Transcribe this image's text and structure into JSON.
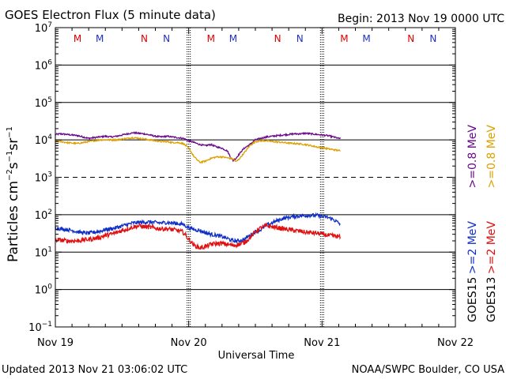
{
  "header": {
    "title": "GOES Electron Flux (5 minute data)",
    "begin": "Begin: 2013 Nov 19 0000 UTC"
  },
  "footer": {
    "updated": "Updated 2013 Nov 21 03:06:02 UTC",
    "source": "NOAA/SWPC Boulder, CO USA"
  },
  "chart_data": {
    "type": "line",
    "title": "GOES Electron Flux (5 minute data)",
    "xlabel": "Universal Time",
    "ylabel": "Particles cm-2 s-1 sr-1",
    "yscale": "log",
    "ylim": [
      0.1,
      10000000
    ],
    "xlim": [
      0,
      72
    ],
    "x_unit": "hours since 2013 Nov 19 0000 UTC",
    "x_ticks": [
      {
        "x": 0,
        "label": "Nov 19"
      },
      {
        "x": 24,
        "label": "Nov 20"
      },
      {
        "x": 48,
        "label": "Nov 21"
      },
      {
        "x": 72,
        "label": "Nov 22"
      }
    ],
    "y_ticks": [
      {
        "exp": -1,
        "base": "10",
        "sup": "−1"
      },
      {
        "exp": 0,
        "base": "10",
        "sup": "0"
      },
      {
        "exp": 1,
        "base": "10",
        "sup": "1"
      },
      {
        "exp": 2,
        "base": "10",
        "sup": "2"
      },
      {
        "exp": 3,
        "base": "10",
        "sup": "3"
      },
      {
        "exp": 4,
        "base": "10",
        "sup": "4"
      },
      {
        "exp": 5,
        "base": "10",
        "sup": "5"
      },
      {
        "exp": 6,
        "base": "10",
        "sup": "6"
      },
      {
        "exp": 7,
        "base": "10",
        "sup": "7"
      }
    ],
    "gridlines_solid": [
      0,
      1,
      2,
      4,
      5,
      6
    ],
    "gridlines_dashed": [
      3
    ],
    "midnight_markers": [
      {
        "x": 24,
        "label": "Nov 20"
      },
      {
        "x": 48,
        "label": "Nov 21"
      }
    ],
    "mn_markers": [
      {
        "x": 4.0,
        "label": "M",
        "color": "#e00000"
      },
      {
        "x": 8.0,
        "label": "M",
        "color": "#2030c0"
      },
      {
        "x": 16.0,
        "label": "N",
        "color": "#e00000"
      },
      {
        "x": 20.0,
        "label": "N",
        "color": "#2030c0"
      },
      {
        "x": 28.0,
        "label": "M",
        "color": "#e00000"
      },
      {
        "x": 32.0,
        "label": "M",
        "color": "#2030c0"
      },
      {
        "x": 40.0,
        "label": "N",
        "color": "#e00000"
      },
      {
        "x": 44.0,
        "label": "N",
        "color": "#2030c0"
      },
      {
        "x": 52.0,
        "label": "M",
        "color": "#e00000"
      },
      {
        "x": 56.0,
        "label": "M",
        "color": "#2030c0"
      },
      {
        "x": 64.0,
        "label": "N",
        "color": "#e00000"
      },
      {
        "x": 68.0,
        "label": "N",
        "color": "#2030c0"
      }
    ],
    "legend": [
      {
        "sat": "GOES15",
        "label": ">=0.8 MeV",
        "color": "#6a0a8c"
      },
      {
        "sat": "GOES13",
        "label": ">=0.8 MeV",
        "color": "#dca000"
      },
      {
        "sat": "GOES15",
        "label": ">=2 MeV",
        "color": "#1030c8"
      },
      {
        "sat": "GOES13",
        "label": ">=2 MeV",
        "color": "#e01010"
      }
    ],
    "legend_sat_labels": [
      "GOES15",
      "GOES13"
    ],
    "series": [
      {
        "name": "GOES15 >=0.8 MeV",
        "color": "#6a0a8c",
        "noise": 0.02,
        "x": [
          0,
          1,
          2,
          3,
          4,
          5,
          6,
          7,
          8,
          9,
          10,
          11,
          12,
          13,
          14,
          15,
          16,
          17,
          18,
          19,
          20,
          21,
          22,
          23,
          24,
          25,
          26,
          27,
          28,
          29,
          30,
          31,
          31.5,
          32,
          32.5,
          33,
          33.5,
          34,
          35,
          36,
          37,
          38,
          39,
          40,
          41,
          42,
          43,
          44,
          45,
          46,
          47,
          48,
          49,
          50,
          51,
          51.3
        ],
        "values": [
          14000,
          14500,
          14000,
          13500,
          13000,
          12000,
          11000,
          11500,
          12000,
          12500,
          12000,
          12500,
          13500,
          14500,
          15500,
          15000,
          14500,
          13500,
          12500,
          12000,
          12500,
          12000,
          11500,
          11000,
          9500,
          8500,
          7500,
          7000,
          7500,
          6500,
          6000,
          5000,
          3500,
          2800,
          3200,
          4000,
          5000,
          6000,
          7500,
          10000,
          11000,
          12000,
          12500,
          13000,
          13500,
          14000,
          14500,
          14500,
          15000,
          14500,
          14000,
          13500,
          13000,
          12000,
          11000,
          10800
        ]
      },
      {
        "name": "GOES13 >=0.8 MeV",
        "color": "#dca000",
        "noise": 0.02,
        "x": [
          0,
          1,
          2,
          3,
          4,
          5,
          6,
          7,
          8,
          9,
          10,
          11,
          12,
          13,
          14,
          15,
          16,
          17,
          18,
          19,
          20,
          21,
          22,
          23,
          24,
          25,
          26,
          27,
          28,
          29,
          30,
          31,
          32,
          32.5,
          33,
          34,
          35,
          36,
          37,
          38,
          39,
          40,
          41,
          42,
          43,
          44,
          45,
          46,
          47,
          48,
          49,
          50,
          51,
          51.3
        ],
        "values": [
          9500,
          9000,
          8500,
          8200,
          8000,
          8500,
          9000,
          9500,
          10000,
          10000,
          10000,
          10000,
          10500,
          11000,
          11500,
          11000,
          10500,
          10000,
          9500,
          9000,
          9000,
          8500,
          8500,
          8000,
          6000,
          3500,
          2500,
          2700,
          3200,
          3500,
          3500,
          3300,
          3100,
          2600,
          3000,
          4500,
          7000,
          9000,
          9500,
          9500,
          9000,
          8800,
          8500,
          8200,
          8000,
          7800,
          7500,
          7000,
          6500,
          6200,
          5800,
          5500,
          5200,
          5100
        ]
      },
      {
        "name": "GOES15 >=2 MeV",
        "color": "#1030c8",
        "noise": 0.05,
        "x": [
          0,
          1,
          2,
          3,
          4,
          5,
          6,
          7,
          8,
          9,
          10,
          11,
          12,
          13,
          14,
          15,
          16,
          17,
          18,
          19,
          20,
          21,
          22,
          23,
          24,
          25,
          26,
          27,
          28,
          29,
          30,
          31,
          32,
          33,
          34,
          35,
          36,
          37,
          38,
          39,
          40,
          41,
          42,
          43,
          44,
          45,
          46,
          47,
          48,
          49,
          50,
          51,
          51.3
        ],
        "values": [
          45,
          42,
          40,
          38,
          35,
          33,
          32,
          34,
          36,
          40,
          42,
          45,
          50,
          55,
          60,
          62,
          63,
          64,
          62,
          60,
          62,
          60,
          58,
          55,
          45,
          40,
          38,
          33,
          30,
          28,
          26,
          23,
          20,
          20,
          22,
          28,
          35,
          40,
          52,
          60,
          70,
          80,
          85,
          90,
          93,
          95,
          96,
          95,
          90,
          85,
          75,
          60,
          55
        ]
      },
      {
        "name": "GOES13 >=2 MeV",
        "color": "#e01010",
        "noise": 0.06,
        "x": [
          0,
          1,
          2,
          3,
          4,
          5,
          6,
          7,
          8,
          9,
          10,
          11,
          12,
          13,
          14,
          15,
          16,
          17,
          18,
          19,
          20,
          21,
          22,
          23,
          24,
          25,
          26,
          27,
          28,
          29,
          30,
          31,
          32,
          33,
          34,
          35,
          36,
          37,
          38,
          39,
          40,
          41,
          42,
          43,
          44,
          45,
          46,
          47,
          48,
          49,
          50,
          51,
          51.3
        ],
        "values": [
          21,
          21,
          20,
          20,
          20,
          21,
          22,
          23,
          25,
          28,
          30,
          33,
          38,
          42,
          47,
          50,
          48,
          46,
          44,
          42,
          42,
          40,
          38,
          34,
          22,
          15,
          13,
          14,
          16,
          17,
          17,
          16,
          15,
          16,
          18,
          24,
          35,
          45,
          50,
          48,
          45,
          42,
          40,
          38,
          36,
          34,
          33,
          32,
          30,
          28,
          27,
          26,
          25
        ]
      }
    ]
  }
}
